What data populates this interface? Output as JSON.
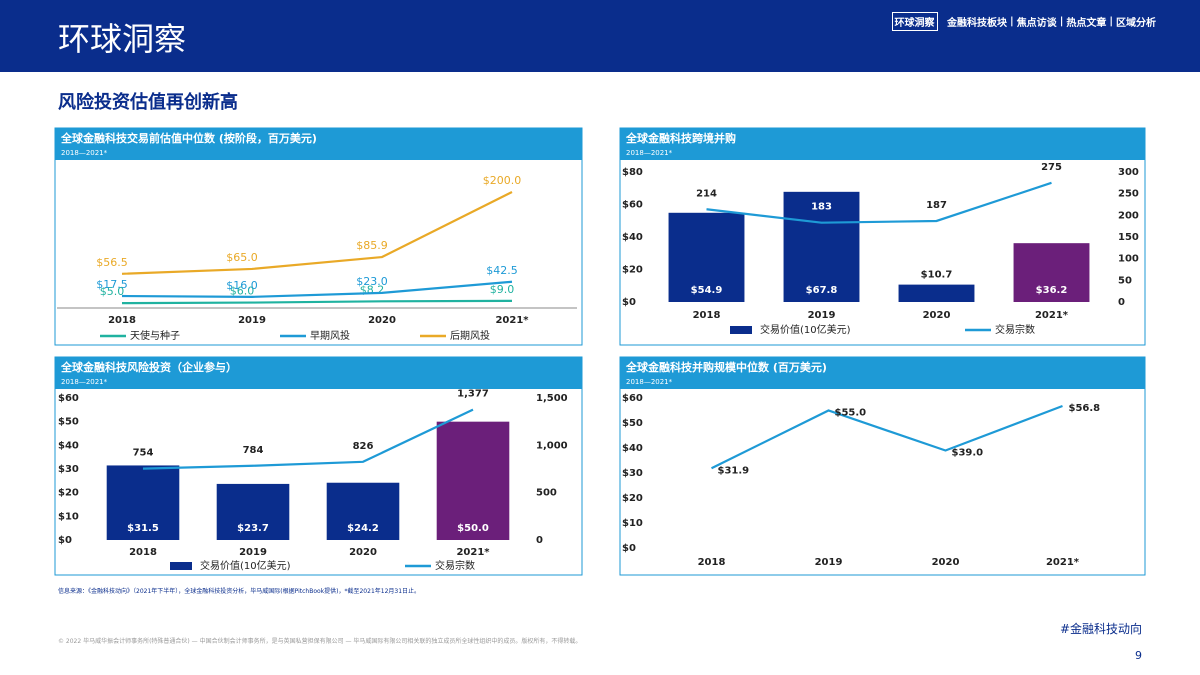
{
  "header": {
    "title": "环球洞察",
    "nav": [
      "环球洞察",
      "金融科技板块",
      "焦点访谈",
      "热点文章",
      "区域分析"
    ]
  },
  "headline": "风险投资估值再创新高",
  "chart_data": [
    {
      "type": "line",
      "title": "全球金融科技交易前估值中位数 (按阶段，百万美元)",
      "subtitle": "2018—2021*",
      "categories": [
        "2018",
        "2019",
        "2020",
        "2021*"
      ],
      "series": [
        {
          "name": "天使与种子",
          "color": "#20b2a0",
          "values": [
            5.0,
            6.0,
            8.2,
            9.0
          ],
          "value_labels": [
            "$5.0",
            "$6.0",
            "$8.2",
            "$9.0"
          ]
        },
        {
          "name": "早期风投",
          "color": "#1e9ad6",
          "values": [
            17.5,
            16.0,
            23.0,
            42.5
          ],
          "value_labels": [
            "$17.5",
            "$16.0",
            "$23.0",
            "$42.5"
          ]
        },
        {
          "name": "后期风投",
          "color": "#e9a927",
          "values": [
            56.5,
            65.0,
            85.9,
            200.0
          ],
          "value_labels": [
            "$56.5",
            "$65.0",
            "$85.9",
            "$200.0"
          ]
        }
      ]
    },
    {
      "type": "combo",
      "title": "全球金融科技跨境并购",
      "subtitle": "2018—2021*",
      "categories": [
        "2018",
        "2019",
        "2020",
        "2021*"
      ],
      "series": [
        {
          "name": "交易价值(10亿美元)",
          "type": "bar",
          "color": "#0a2d8c",
          "colors": [
            "#0a2d8c",
            "#0a2d8c",
            "#0a2d8c",
            "#6b1f7a"
          ],
          "values": [
            54.9,
            67.8,
            10.7,
            36.2
          ],
          "value_labels": [
            "$54.9",
            "$67.8",
            "$10.7",
            "$36.2"
          ]
        },
        {
          "name": "交易宗数",
          "type": "line",
          "axis": "y2",
          "color": "#1e9ad6",
          "values": [
            214,
            183,
            187,
            275
          ]
        }
      ],
      "ylim": [
        0,
        80
      ],
      "yticks": [
        {
          "value": 0,
          "label": "$0"
        },
        {
          "value": 20,
          "label": "$20"
        },
        {
          "value": 40,
          "label": "$40"
        },
        {
          "value": 60,
          "label": "$60"
        },
        {
          "value": 80,
          "label": "$80"
        }
      ],
      "y2lim": [
        0,
        300
      ],
      "y2ticks": [
        0,
        50,
        100,
        150,
        200,
        250,
        300
      ]
    },
    {
      "type": "combo",
      "title": "全球金融科技风险投资（企业参与）",
      "subtitle": "2018—2021*",
      "categories": [
        "2018",
        "2019",
        "2020",
        "2021*"
      ],
      "series": [
        {
          "name": "交易价值(10亿美元)",
          "type": "bar",
          "color": "#0a2d8c",
          "colors": [
            "#0a2d8c",
            "#0a2d8c",
            "#0a2d8c",
            "#6b1f7a"
          ],
          "values": [
            31.5,
            23.7,
            24.2,
            50.0
          ],
          "value_labels": [
            "$31.5",
            "$23.7",
            "$24.2",
            "$50.0"
          ]
        },
        {
          "name": "交易宗数",
          "type": "line",
          "axis": "y2",
          "color": "#1e9ad6",
          "values": [
            754,
            784,
            826,
            1377
          ],
          "value_labels": [
            "754",
            "784",
            "826",
            "1,377"
          ]
        }
      ],
      "ylim": [
        0,
        60
      ],
      "yticks": [
        {
          "value": 0,
          "label": "$0"
        },
        {
          "value": 10,
          "label": "$10"
        },
        {
          "value": 20,
          "label": "$20"
        },
        {
          "value": 30,
          "label": "$30"
        },
        {
          "value": 40,
          "label": "$40"
        },
        {
          "value": 50,
          "label": "$50"
        },
        {
          "value": 60,
          "label": "$60"
        }
      ],
      "y2lim": [
        0,
        1500
      ],
      "y2ticks": [
        0,
        500,
        {
          "value": 1000,
          "label": "1,000"
        },
        {
          "value": 1500,
          "label": "1,500"
        }
      ]
    },
    {
      "type": "line",
      "title": "全球金融科技并购规模中位数 (百万美元)",
      "subtitle": "2018—2021*",
      "categories": [
        "2018",
        "2019",
        "2020",
        "2021*"
      ],
      "color": "#1e9ad6",
      "values": [
        31.9,
        55.0,
        39.0,
        56.8
      ],
      "value_labels": [
        "$31.9",
        "$55.0",
        "$39.0",
        "$56.8"
      ],
      "ylim": [
        0,
        60
      ],
      "yticks": [
        {
          "value": 0,
          "label": "$0"
        },
        {
          "value": 10,
          "label": "$10"
        },
        {
          "value": 20,
          "label": "$20"
        },
        {
          "value": 30,
          "label": "$30"
        },
        {
          "value": 40,
          "label": "$40"
        },
        {
          "value": 50,
          "label": "$50"
        },
        {
          "value": 60,
          "label": "$60"
        }
      ]
    }
  ],
  "footer": {
    "source": "信息来源：《金融科技动向》（2021年下半年），全球金融科技投资分析，毕马威国际(根据PitchBook提供)，*截至2021年12月31日止。",
    "copyright": "© 2022 毕马威华振会计师事务所(特殊普通合伙) — 中国合伙制会计师事务所，是与英国私营担保有限公司 — 毕马威国际有限公司相关联的独立成员所全球性组织中的成员。版权所有，不得转载。",
    "tag": "#金融科技动向",
    "page": "9"
  }
}
